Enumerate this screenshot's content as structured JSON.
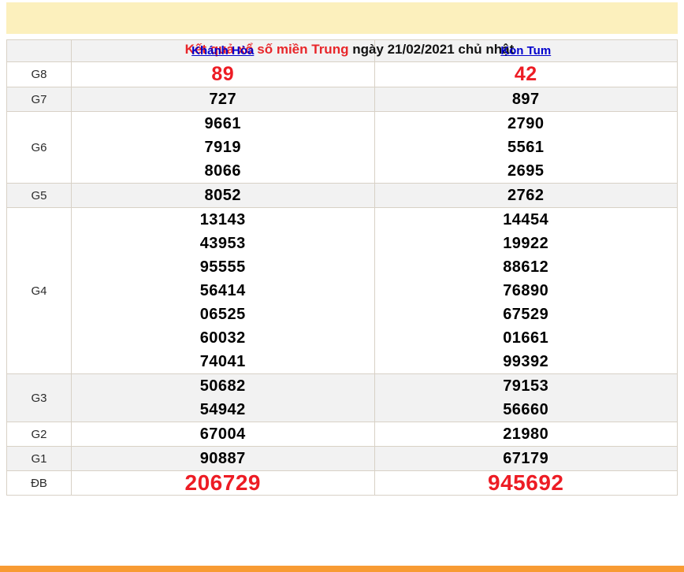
{
  "title": {
    "highlight": "Kết quả xổ số miền Trung",
    "rest": " ngày 21/02/2021 chủ nhật"
  },
  "columns": [
    "Khánh Hòa",
    "Kon Tum"
  ],
  "prize_rows": [
    {
      "label": "G8",
      "style": "red-lg",
      "cells": [
        [
          "89"
        ],
        [
          "42"
        ]
      ]
    },
    {
      "label": "G7",
      "style": "",
      "cells": [
        [
          "727"
        ],
        [
          "897"
        ]
      ]
    },
    {
      "label": "G6",
      "style": "",
      "cells": [
        [
          "9661",
          "7919",
          "8066"
        ],
        [
          "2790",
          "5561",
          "2695"
        ]
      ]
    },
    {
      "label": "G5",
      "style": "",
      "cells": [
        [
          "8052"
        ],
        [
          "2762"
        ]
      ]
    },
    {
      "label": "G4",
      "style": "",
      "cells": [
        [
          "13143",
          "43953",
          "95555",
          "56414",
          "06525",
          "60032",
          "74041"
        ],
        [
          "14454",
          "19922",
          "88612",
          "76890",
          "67529",
          "01661",
          "99392"
        ]
      ]
    },
    {
      "label": "G3",
      "style": "",
      "cells": [
        [
          "50682",
          "54942"
        ],
        [
          "79153",
          "56660"
        ]
      ]
    },
    {
      "label": "G2",
      "style": "",
      "cells": [
        [
          "67004"
        ],
        [
          "21980"
        ]
      ]
    },
    {
      "label": "G1",
      "style": "",
      "cells": [
        [
          "90887"
        ],
        [
          "67179"
        ]
      ]
    },
    {
      "label": "ĐB",
      "style": "red-xl",
      "cells": [
        [
          "206729"
        ],
        [
          "945692"
        ]
      ]
    }
  ],
  "colors": {
    "title_highlight": "#E8262A",
    "number_red": "#ED1C24",
    "link_blue": "#0000CC",
    "title_bg_yellow": "#FCF0BD",
    "alt_row_gray": "#F2F2F2",
    "table_border": "#D8D1C6",
    "footer_orange": "#F89B33"
  }
}
